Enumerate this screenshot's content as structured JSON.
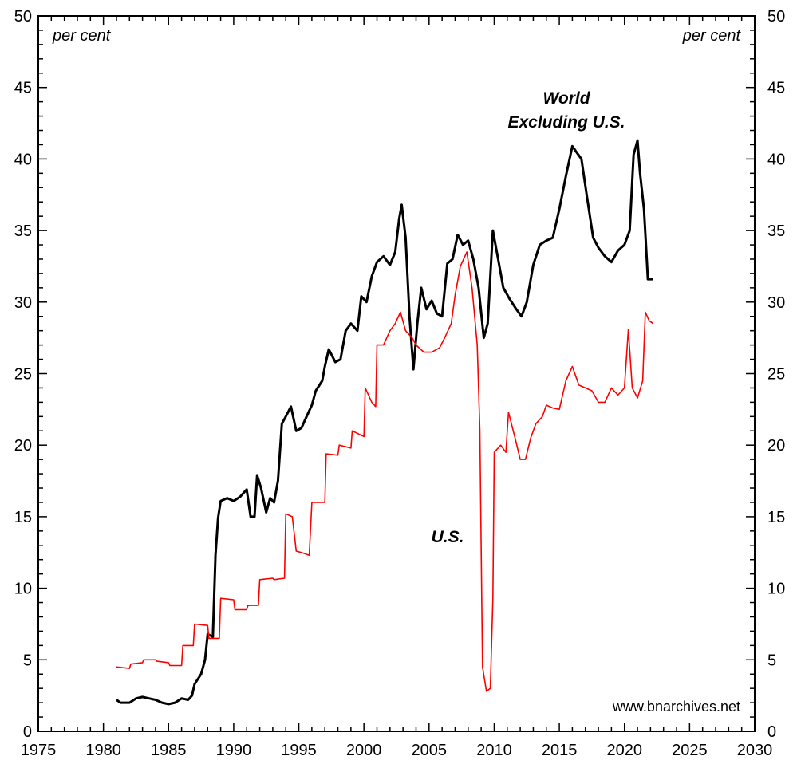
{
  "chart_data": {
    "type": "line",
    "xlim": [
      1975,
      2030
    ],
    "ylim": [
      0,
      50
    ],
    "x_ticks": [
      1975,
      1980,
      1985,
      1990,
      1995,
      2000,
      2005,
      2010,
      2015,
      2020,
      2025,
      2030
    ],
    "y_ticks": [
      0,
      5,
      10,
      15,
      20,
      25,
      30,
      35,
      40,
      45,
      50
    ],
    "left_unit": "per cent",
    "right_unit": "per cent",
    "source": "www.bnarchives.net",
    "grid": false,
    "series": [
      {
        "name": "World Excluding U.S.",
        "color": "#000000",
        "points": [
          [
            1981.0,
            2.2
          ],
          [
            1981.3,
            2.0
          ],
          [
            1982.0,
            2.0
          ],
          [
            1982.5,
            2.3
          ],
          [
            1983.0,
            2.4
          ],
          [
            1983.5,
            2.3
          ],
          [
            1984.0,
            2.2
          ],
          [
            1984.5,
            2.0
          ],
          [
            1985.0,
            1.9
          ],
          [
            1985.5,
            2.0
          ],
          [
            1986.0,
            2.3
          ],
          [
            1986.5,
            2.2
          ],
          [
            1986.8,
            2.5
          ],
          [
            1987.0,
            3.3
          ],
          [
            1987.5,
            4.0
          ],
          [
            1987.8,
            5.0
          ],
          [
            1988.0,
            6.8
          ],
          [
            1988.4,
            6.6
          ],
          [
            1988.6,
            12.3
          ],
          [
            1988.8,
            14.9
          ],
          [
            1989.0,
            16.1
          ],
          [
            1989.5,
            16.3
          ],
          [
            1990.0,
            16.1
          ],
          [
            1990.5,
            16.4
          ],
          [
            1991.0,
            16.9
          ],
          [
            1991.3,
            15.0
          ],
          [
            1991.6,
            15.0
          ],
          [
            1991.8,
            17.9
          ],
          [
            1992.1,
            17.0
          ],
          [
            1992.5,
            15.3
          ],
          [
            1992.8,
            16.3
          ],
          [
            1993.1,
            16.0
          ],
          [
            1993.4,
            17.5
          ],
          [
            1993.7,
            21.5
          ],
          [
            1994.0,
            22.0
          ],
          [
            1994.4,
            22.7
          ],
          [
            1994.8,
            21.0
          ],
          [
            1995.2,
            21.2
          ],
          [
            1995.6,
            22.0
          ],
          [
            1996.0,
            22.8
          ],
          [
            1996.3,
            23.8
          ],
          [
            1996.8,
            24.5
          ],
          [
            1997.0,
            25.5
          ],
          [
            1997.3,
            26.7
          ],
          [
            1997.8,
            25.8
          ],
          [
            1998.2,
            26.0
          ],
          [
            1998.6,
            28.0
          ],
          [
            1999.0,
            28.5
          ],
          [
            1999.5,
            28.0
          ],
          [
            1999.8,
            30.4
          ],
          [
            2000.2,
            30.0
          ],
          [
            2000.6,
            31.8
          ],
          [
            2001.0,
            32.8
          ],
          [
            2001.5,
            33.2
          ],
          [
            2002.0,
            32.6
          ],
          [
            2002.4,
            33.5
          ],
          [
            2002.7,
            35.8
          ],
          [
            2002.9,
            36.8
          ],
          [
            2003.2,
            34.5
          ],
          [
            2003.5,
            29.0
          ],
          [
            2003.8,
            25.3
          ],
          [
            2004.1,
            28.5
          ],
          [
            2004.4,
            31.0
          ],
          [
            2004.8,
            29.5
          ],
          [
            2005.2,
            30.1
          ],
          [
            2005.6,
            29.2
          ],
          [
            2006.0,
            29.0
          ],
          [
            2006.4,
            32.7
          ],
          [
            2006.8,
            33.0
          ],
          [
            2007.2,
            34.7
          ],
          [
            2007.6,
            34.0
          ],
          [
            2008.0,
            34.3
          ],
          [
            2008.4,
            33.0
          ],
          [
            2008.8,
            31.0
          ],
          [
            2009.2,
            27.5
          ],
          [
            2009.5,
            28.5
          ],
          [
            2009.9,
            35.0
          ],
          [
            2010.3,
            33.0
          ],
          [
            2010.7,
            31.0
          ],
          [
            2011.2,
            30.2
          ],
          [
            2011.7,
            29.5
          ],
          [
            2012.1,
            29.0
          ],
          [
            2012.5,
            30.0
          ],
          [
            2013.0,
            32.6
          ],
          [
            2013.5,
            34.0
          ],
          [
            2014.0,
            34.3
          ],
          [
            2014.5,
            34.5
          ],
          [
            2015.0,
            36.5
          ],
          [
            2015.5,
            38.8
          ],
          [
            2016.0,
            40.9
          ],
          [
            2016.3,
            40.5
          ],
          [
            2016.7,
            40.0
          ],
          [
            2017.1,
            37.5
          ],
          [
            2017.6,
            34.5
          ],
          [
            2018.0,
            33.8
          ],
          [
            2018.5,
            33.2
          ],
          [
            2019.0,
            32.8
          ],
          [
            2019.5,
            33.6
          ],
          [
            2020.0,
            34.0
          ],
          [
            2020.4,
            35.0
          ],
          [
            2020.7,
            40.3
          ],
          [
            2021.0,
            41.3
          ],
          [
            2021.2,
            39.0
          ],
          [
            2021.5,
            36.5
          ],
          [
            2021.8,
            31.6
          ],
          [
            2022.2,
            31.6
          ]
        ]
      },
      {
        "name": "U.S.",
        "color": "#ff0000",
        "points": [
          [
            1981.0,
            4.5
          ],
          [
            1982.0,
            4.4
          ],
          [
            1982.1,
            4.7
          ],
          [
            1983.0,
            4.8
          ],
          [
            1983.1,
            5.0
          ],
          [
            1984.0,
            5.0
          ],
          [
            1984.1,
            4.9
          ],
          [
            1985.0,
            4.8
          ],
          [
            1985.1,
            4.6
          ],
          [
            1986.0,
            4.6
          ],
          [
            1986.1,
            6.0
          ],
          [
            1986.9,
            6.0
          ],
          [
            1987.0,
            7.5
          ],
          [
            1988.0,
            7.4
          ],
          [
            1988.1,
            6.5
          ],
          [
            1988.9,
            6.5
          ],
          [
            1989.0,
            9.3
          ],
          [
            1990.0,
            9.2
          ],
          [
            1990.1,
            8.5
          ],
          [
            1991.0,
            8.5
          ],
          [
            1991.1,
            8.8
          ],
          [
            1991.9,
            8.8
          ],
          [
            1992.0,
            10.6
          ],
          [
            1993.0,
            10.7
          ],
          [
            1993.1,
            10.6
          ],
          [
            1993.9,
            10.7
          ],
          [
            1994.0,
            15.2
          ],
          [
            1994.5,
            15.0
          ],
          [
            1994.8,
            12.6
          ],
          [
            1995.2,
            12.5
          ],
          [
            1995.8,
            12.3
          ],
          [
            1996.0,
            16.0
          ],
          [
            1997.0,
            16.0
          ],
          [
            1997.1,
            19.4
          ],
          [
            1998.0,
            19.3
          ],
          [
            1998.1,
            20.0
          ],
          [
            1999.0,
            19.8
          ],
          [
            1999.1,
            21.0
          ],
          [
            2000.0,
            20.6
          ],
          [
            2000.1,
            24.0
          ],
          [
            2000.6,
            23.0
          ],
          [
            2000.9,
            22.7
          ],
          [
            2001.0,
            27.0
          ],
          [
            2001.5,
            27.0
          ],
          [
            2002.0,
            28.0
          ],
          [
            2002.4,
            28.5
          ],
          [
            2002.8,
            29.3
          ],
          [
            2003.2,
            28.0
          ],
          [
            2003.7,
            27.5
          ],
          [
            2004.0,
            27.0
          ],
          [
            2004.6,
            26.5
          ],
          [
            2005.2,
            26.5
          ],
          [
            2005.8,
            26.8
          ],
          [
            2006.2,
            27.5
          ],
          [
            2006.7,
            28.5
          ],
          [
            2007.0,
            30.5
          ],
          [
            2007.4,
            32.5
          ],
          [
            2007.9,
            33.5
          ],
          [
            2008.3,
            31.0
          ],
          [
            2008.7,
            27.0
          ],
          [
            2008.9,
            21.0
          ],
          [
            2009.1,
            4.5
          ],
          [
            2009.4,
            2.8
          ],
          [
            2009.7,
            3.0
          ],
          [
            2009.9,
            9.3
          ],
          [
            2010.0,
            19.5
          ],
          [
            2010.5,
            20.0
          ],
          [
            2010.9,
            19.5
          ],
          [
            2011.1,
            22.3
          ],
          [
            2011.6,
            20.5
          ],
          [
            2012.0,
            19.0
          ],
          [
            2012.4,
            19.0
          ],
          [
            2012.8,
            20.5
          ],
          [
            2013.2,
            21.5
          ],
          [
            2013.7,
            22.0
          ],
          [
            2014.0,
            22.8
          ],
          [
            2014.5,
            22.6
          ],
          [
            2015.0,
            22.5
          ],
          [
            2015.5,
            24.5
          ],
          [
            2016.0,
            25.5
          ],
          [
            2016.5,
            24.2
          ],
          [
            2017.0,
            24.0
          ],
          [
            2017.5,
            23.8
          ],
          [
            2018.0,
            23.0
          ],
          [
            2018.5,
            23.0
          ],
          [
            2019.0,
            24.0
          ],
          [
            2019.5,
            23.5
          ],
          [
            2020.0,
            24.0
          ],
          [
            2020.3,
            28.1
          ],
          [
            2020.6,
            24.0
          ],
          [
            2021.0,
            23.3
          ],
          [
            2021.4,
            24.5
          ],
          [
            2021.6,
            29.3
          ],
          [
            2021.9,
            28.7
          ],
          [
            2022.2,
            28.5
          ]
        ]
      }
    ]
  },
  "labels": {
    "world_line1": "World",
    "world_line2": "Excluding U.S.",
    "us": "U.S."
  }
}
